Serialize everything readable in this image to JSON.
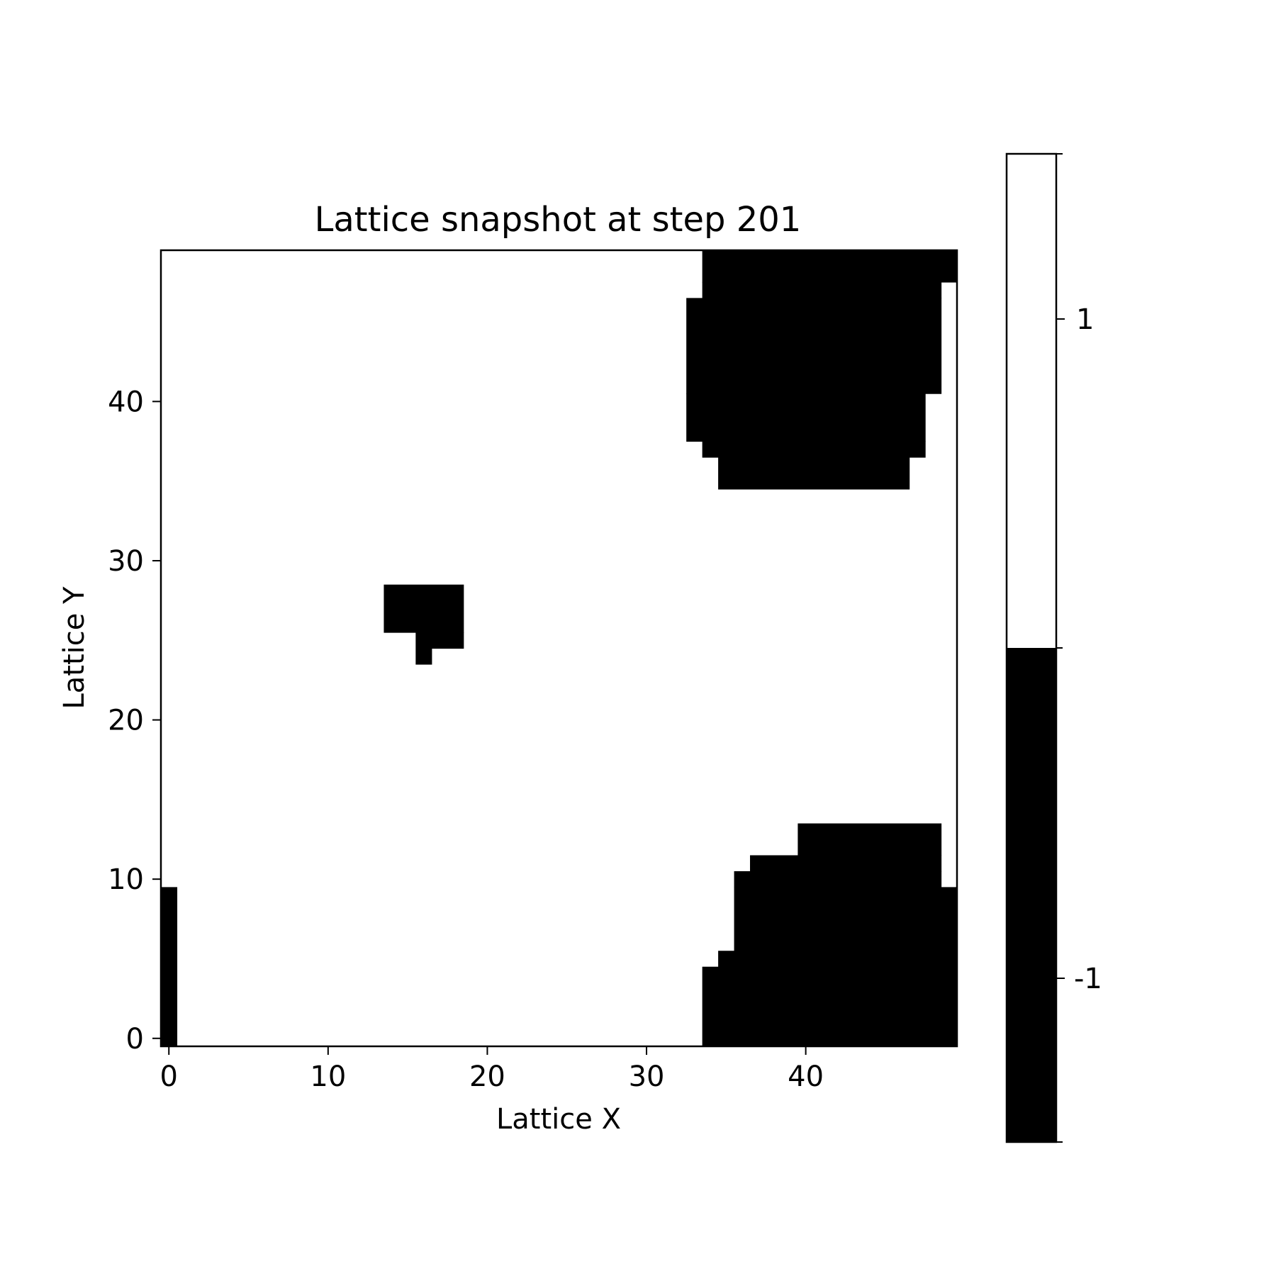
{
  "chart_data": {
    "type": "heatmap",
    "title": "Lattice snapshot at step 201",
    "xlabel": "Lattice X",
    "ylabel": "Lattice Y",
    "xlim": [
      -0.5,
      49.5
    ],
    "ylim": [
      -0.5,
      49.5
    ],
    "x_ticks": [
      0,
      10,
      20,
      30,
      40
    ],
    "y_ticks": [
      0,
      10,
      20,
      30,
      40
    ],
    "grid": false,
    "default_value": 1,
    "colormap": {
      "1": "#ffffff",
      "-1": "#000000"
    },
    "colorbar": {
      "ticks": [
        1,
        -1
      ],
      "tick_labels": [
        "1",
        "-1"
      ]
    },
    "minus_one_regions": [
      {
        "x": [
          0,
          0
        ],
        "y": [
          0,
          9
        ]
      },
      {
        "x": [
          34,
          49
        ],
        "y": [
          0,
          4
        ]
      },
      {
        "x": [
          35,
          49
        ],
        "y": [
          5,
          5
        ]
      },
      {
        "x": [
          36,
          49
        ],
        "y": [
          6,
          9
        ]
      },
      {
        "x": [
          36,
          48
        ],
        "y": [
          10,
          10
        ]
      },
      {
        "x": [
          37,
          48
        ],
        "y": [
          11,
          11
        ]
      },
      {
        "x": [
          40,
          48
        ],
        "y": [
          12,
          13
        ]
      },
      {
        "x": [
          14,
          18
        ],
        "y": [
          26,
          28
        ]
      },
      {
        "x": [
          16,
          16
        ],
        "y": [
          24,
          25
        ]
      },
      {
        "x": [
          17,
          18
        ],
        "y": [
          25,
          25
        ]
      },
      {
        "x": [
          35,
          46
        ],
        "y": [
          35,
          36
        ]
      },
      {
        "x": [
          34,
          47
        ],
        "y": [
          37,
          37
        ]
      },
      {
        "x": [
          33,
          47
        ],
        "y": [
          38,
          40
        ]
      },
      {
        "x": [
          33,
          48
        ],
        "y": [
          41,
          46
        ]
      },
      {
        "x": [
          34,
          48
        ],
        "y": [
          47,
          47
        ]
      },
      {
        "x": [
          34,
          49
        ],
        "y": [
          48,
          49
        ]
      }
    ]
  }
}
